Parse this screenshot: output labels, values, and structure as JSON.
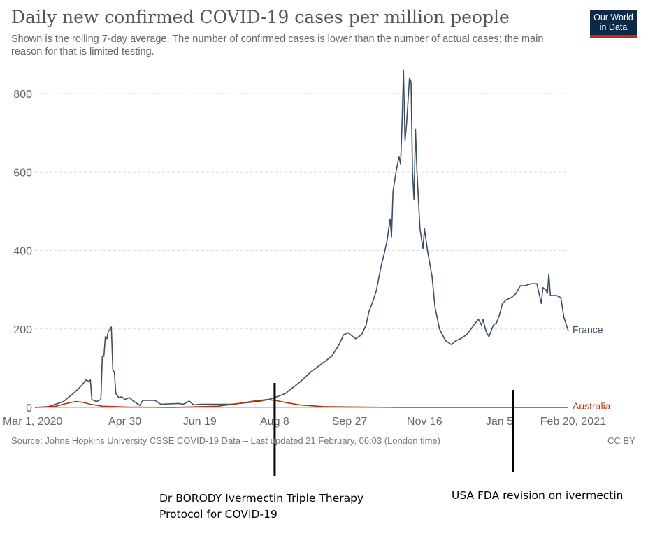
{
  "header": {
    "title": "Daily new confirmed COVID-19 cases per million people",
    "subtitle": "Shown is the rolling 7-day average. The number of confirmed cases is lower than the number of actual cases; the main reason for that is limited testing."
  },
  "logo": {
    "line1": "Our World",
    "line2": "in Data"
  },
  "footer": {
    "source": "Source: Johns Hopkins University CSSE COVID-19 Data – Last updated 21 February, 06:03 (London time)",
    "license": "CC BY"
  },
  "annotations": {
    "borody": "Dr BORODY Ivermectin Triple Therapy Protocol for COVID-19",
    "fda": "USA FDA revision on ivermectin"
  },
  "chart_data": {
    "type": "line",
    "xlabel": "",
    "ylabel": "",
    "xlim": [
      "2020-03-01",
      "2021-02-20"
    ],
    "ylim": [
      0,
      800
    ],
    "x_ticks": [
      {
        "date": "2020-03-01",
        "label": "Mar 1, 2020"
      },
      {
        "date": "2020-04-30",
        "label": "Apr 30"
      },
      {
        "date": "2020-06-19",
        "label": "Jun 19"
      },
      {
        "date": "2020-08-08",
        "label": "Aug 8"
      },
      {
        "date": "2020-09-27",
        "label": "Sep 27"
      },
      {
        "date": "2020-11-16",
        "label": "Nov 16"
      },
      {
        "date": "2021-01-05",
        "label": "Jan 5"
      },
      {
        "date": "2021-02-20",
        "label": "Feb 20, 2021"
      }
    ],
    "y_ticks": [
      0,
      200,
      400,
      600,
      800
    ],
    "grid": "horizontal-dashed",
    "event_markers": [
      {
        "date": "2020-08-08",
        "label": "Dr BORODY Ivermectin Triple Therapy Protocol for COVID-19"
      },
      {
        "date": "2021-01-14",
        "label": "USA FDA revision on ivermectin"
      }
    ],
    "series": [
      {
        "name": "France",
        "color": "#3c4e66",
        "points": [
          [
            "2020-03-01",
            0
          ],
          [
            "2020-03-10",
            2
          ],
          [
            "2020-03-20",
            15
          ],
          [
            "2020-03-28",
            40
          ],
          [
            "2020-04-01",
            55
          ],
          [
            "2020-04-04",
            70
          ],
          [
            "2020-04-06",
            66
          ],
          [
            "2020-04-07",
            70
          ],
          [
            "2020-04-08",
            20
          ],
          [
            "2020-04-11",
            15
          ],
          [
            "2020-04-14",
            20
          ],
          [
            "2020-04-15",
            130
          ],
          [
            "2020-04-16",
            130
          ],
          [
            "2020-04-17",
            180
          ],
          [
            "2020-04-18",
            175
          ],
          [
            "2020-04-19",
            195
          ],
          [
            "2020-04-20",
            198
          ],
          [
            "2020-04-21",
            205
          ],
          [
            "2020-04-22",
            95
          ],
          [
            "2020-04-23",
            90
          ],
          [
            "2020-04-24",
            35
          ],
          [
            "2020-04-26",
            25
          ],
          [
            "2020-04-28",
            27
          ],
          [
            "2020-04-30",
            20
          ],
          [
            "2020-05-03",
            25
          ],
          [
            "2020-05-06",
            15
          ],
          [
            "2020-05-10",
            5
          ],
          [
            "2020-05-12",
            18
          ],
          [
            "2020-05-20",
            18
          ],
          [
            "2020-05-24",
            8
          ],
          [
            "2020-06-05",
            10
          ],
          [
            "2020-06-08",
            8
          ],
          [
            "2020-06-12",
            16
          ],
          [
            "2020-06-15",
            6
          ],
          [
            "2020-06-19",
            8
          ],
          [
            "2020-06-25",
            8
          ],
          [
            "2020-07-01",
            8
          ],
          [
            "2020-07-10",
            8
          ],
          [
            "2020-07-20",
            12
          ],
          [
            "2020-07-28",
            15
          ],
          [
            "2020-08-04",
            20
          ],
          [
            "2020-08-08",
            25
          ],
          [
            "2020-08-15",
            35
          ],
          [
            "2020-08-20",
            50
          ],
          [
            "2020-08-25",
            65
          ],
          [
            "2020-09-01",
            90
          ],
          [
            "2020-09-08",
            110
          ],
          [
            "2020-09-15",
            130
          ],
          [
            "2020-09-20",
            160
          ],
          [
            "2020-09-23",
            185
          ],
          [
            "2020-09-26",
            190
          ],
          [
            "2020-10-01",
            175
          ],
          [
            "2020-10-05",
            185
          ],
          [
            "2020-10-08",
            210
          ],
          [
            "2020-10-10",
            245
          ],
          [
            "2020-10-13",
            275
          ],
          [
            "2020-10-15",
            300
          ],
          [
            "2020-10-18",
            360
          ],
          [
            "2020-10-20",
            390
          ],
          [
            "2020-10-22",
            425
          ],
          [
            "2020-10-24",
            480
          ],
          [
            "2020-10-25",
            435
          ],
          [
            "2020-10-26",
            550
          ],
          [
            "2020-10-28",
            600
          ],
          [
            "2020-10-30",
            640
          ],
          [
            "2020-10-31",
            620
          ],
          [
            "2020-11-01",
            720
          ],
          [
            "2020-11-02",
            860
          ],
          [
            "2020-11-03",
            680
          ],
          [
            "2020-11-04",
            720
          ],
          [
            "2020-11-06",
            840
          ],
          [
            "2020-11-07",
            830
          ],
          [
            "2020-11-08",
            600
          ],
          [
            "2020-11-09",
            530
          ],
          [
            "2020-11-10",
            710
          ],
          [
            "2020-11-11",
            600
          ],
          [
            "2020-11-13",
            455
          ],
          [
            "2020-11-15",
            405
          ],
          [
            "2020-11-16",
            455
          ],
          [
            "2020-11-18",
            400
          ],
          [
            "2020-11-21",
            335
          ],
          [
            "2020-11-23",
            255
          ],
          [
            "2020-11-26",
            200
          ],
          [
            "2020-11-30",
            170
          ],
          [
            "2020-12-04",
            160
          ],
          [
            "2020-12-07",
            170
          ],
          [
            "2020-12-10",
            175
          ],
          [
            "2020-12-14",
            185
          ],
          [
            "2020-12-17",
            200
          ],
          [
            "2020-12-20",
            215
          ],
          [
            "2020-12-22",
            225
          ],
          [
            "2020-12-24",
            210
          ],
          [
            "2020-12-25",
            225
          ],
          [
            "2020-12-27",
            195
          ],
          [
            "2020-12-29",
            180
          ],
          [
            "2021-01-01",
            210
          ],
          [
            "2021-01-03",
            215
          ],
          [
            "2021-01-05",
            235
          ],
          [
            "2021-01-07",
            265
          ],
          [
            "2021-01-10",
            275
          ],
          [
            "2021-01-13",
            280
          ],
          [
            "2021-01-16",
            290
          ],
          [
            "2021-01-19",
            310
          ],
          [
            "2021-01-22",
            310
          ],
          [
            "2021-01-26",
            315
          ],
          [
            "2021-01-30",
            315
          ],
          [
            "2021-02-02",
            265
          ],
          [
            "2021-02-03",
            305
          ],
          [
            "2021-02-05",
            300
          ],
          [
            "2021-02-06",
            290
          ],
          [
            "2021-02-07",
            340
          ],
          [
            "2021-02-08",
            285
          ],
          [
            "2021-02-12",
            285
          ],
          [
            "2021-02-15",
            280
          ],
          [
            "2021-02-17",
            230
          ],
          [
            "2021-02-20",
            195
          ]
        ]
      },
      {
        "name": "Australia",
        "color": "#b13507",
        "points": [
          [
            "2020-03-01",
            0
          ],
          [
            "2020-03-15",
            3
          ],
          [
            "2020-03-22",
            10
          ],
          [
            "2020-03-28",
            15
          ],
          [
            "2020-04-02",
            13
          ],
          [
            "2020-04-07",
            8
          ],
          [
            "2020-04-15",
            3
          ],
          [
            "2020-05-01",
            1
          ],
          [
            "2020-06-01",
            0
          ],
          [
            "2020-07-01",
            3
          ],
          [
            "2020-07-15",
            10
          ],
          [
            "2020-07-25",
            16
          ],
          [
            "2020-08-03",
            20
          ],
          [
            "2020-08-08",
            18
          ],
          [
            "2020-08-16",
            12
          ],
          [
            "2020-08-25",
            6
          ],
          [
            "2020-09-10",
            2
          ],
          [
            "2020-10-01",
            1
          ],
          [
            "2020-11-01",
            0
          ],
          [
            "2020-12-01",
            0
          ],
          [
            "2021-01-01",
            0
          ],
          [
            "2021-02-20",
            0
          ]
        ]
      }
    ]
  }
}
